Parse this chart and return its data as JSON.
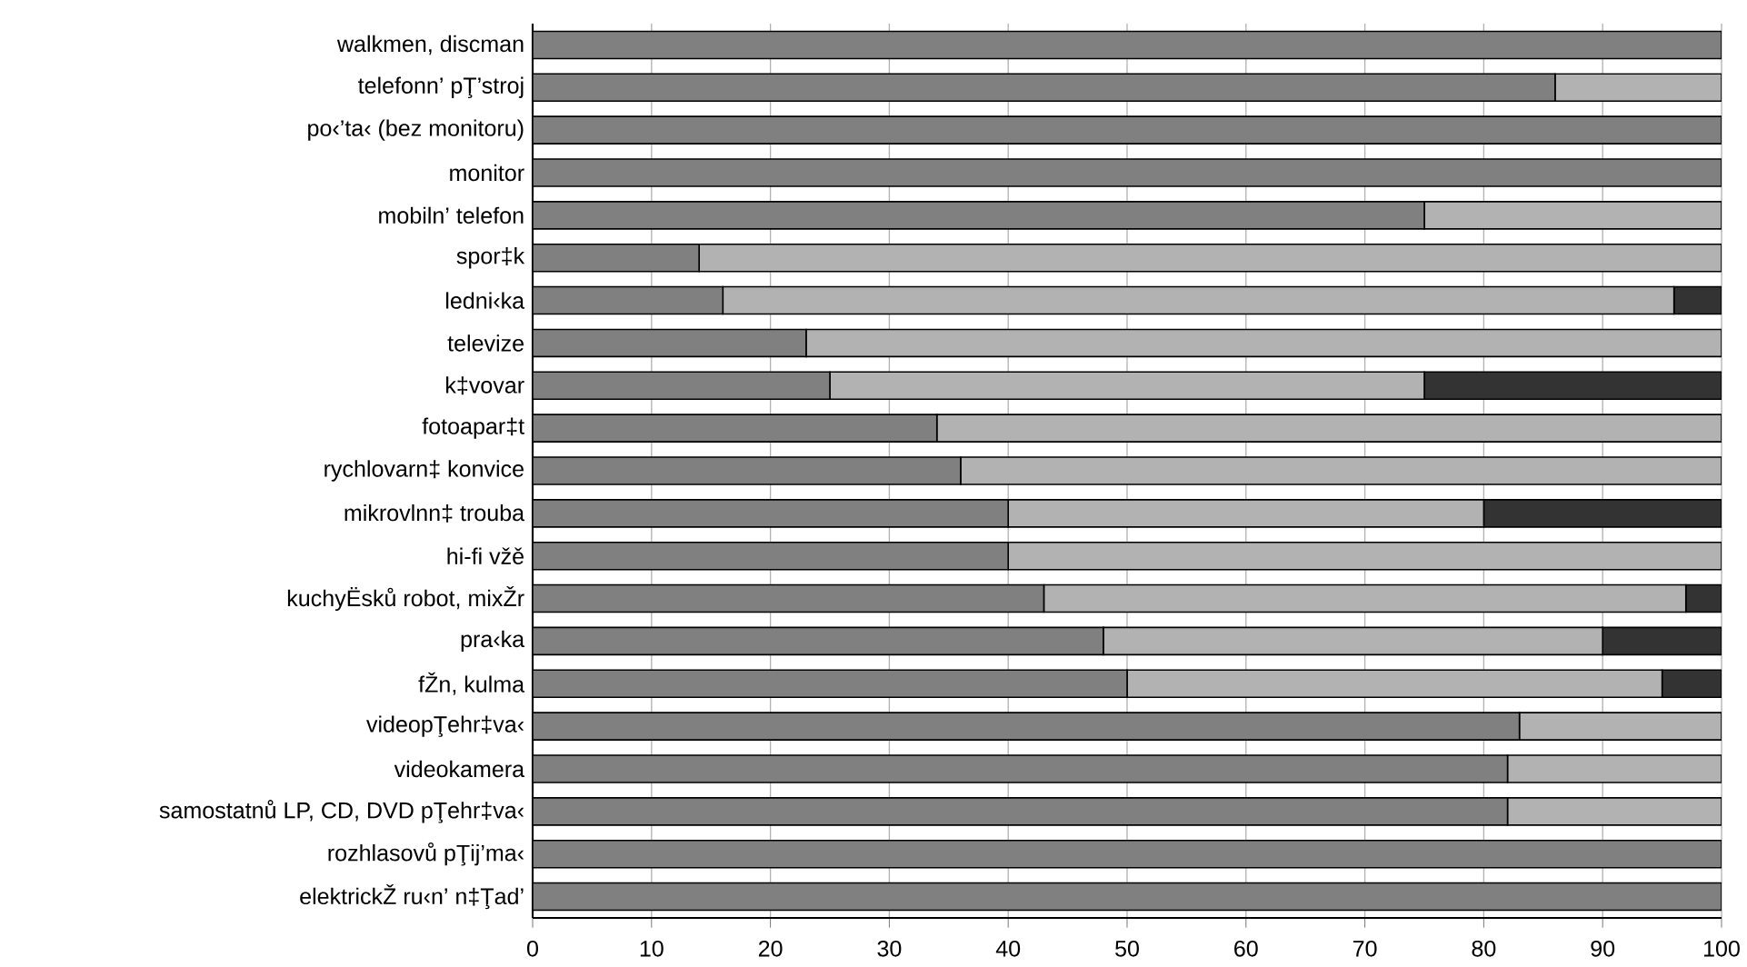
{
  "chart_data": {
    "type": "bar",
    "orientation": "horizontal",
    "stacked": true,
    "grid": "x",
    "categories": [
      "walkmen, discman",
      "telefonn’ pŢ’stroj",
      "po‹’ta‹ (bez monitoru)",
      "monitor",
      "mobiln’ telefon",
      "spor‡k",
      "ledni‹ka",
      "televize",
      "k‡vovar",
      "fotoapar‡t",
      "rychlovarn‡ konvice",
      "mikrovlnn‡ trouba",
      "hi-fi vžě",
      "kuchyËsků robot, mixŽr",
      "pra‹ka",
      "fŽn, kulma",
      "videopŢehr‡va‹",
      "videokamera",
      "samostatnů LP, CD, DVD pŢehr‡va‹",
      "rozhlasovů pŢij’ma‹",
      "elektrickŽ ru‹n’ n‡Ţad’"
    ],
    "series": [
      {
        "color": "#808080",
        "values": [
          100,
          86,
          100,
          100,
          75,
          14,
          16,
          23,
          25,
          34,
          36,
          40,
          40,
          43,
          48,
          50,
          83,
          82,
          82,
          100,
          100
        ]
      },
      {
        "color": "#b2b2b2",
        "values": [
          0,
          14,
          0,
          0,
          25,
          86,
          80,
          77,
          50,
          66,
          64,
          40,
          60,
          54,
          42,
          45,
          17,
          18,
          18,
          0,
          0
        ]
      },
      {
        "color": "#333333",
        "values": [
          0,
          0,
          0,
          0,
          0,
          0,
          4,
          0,
          25,
          0,
          0,
          20,
          0,
          3,
          10,
          5,
          0,
          0,
          0,
          0,
          0
        ]
      }
    ],
    "xlim": [
      0,
      100
    ],
    "xticks": [
      0,
      10,
      20,
      30,
      40,
      50,
      60,
      70,
      80,
      90,
      100
    ]
  }
}
